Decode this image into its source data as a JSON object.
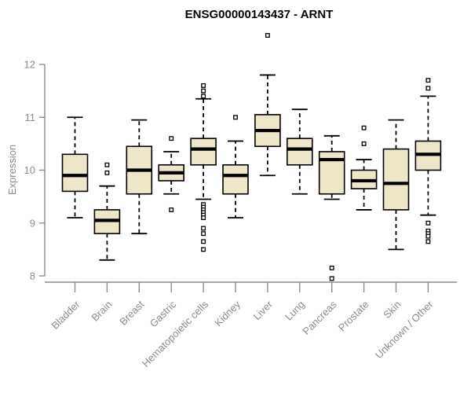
{
  "window": {
    "background": "#ffffff"
  },
  "colors": {
    "box_fill": "#ede6c8",
    "box_stroke": "#000000",
    "median_stroke": "#000000",
    "whisker_stroke": "#000000",
    "outlier_stroke": "#000000",
    "outlier_fill": "#ffffff",
    "axis_line": "#8c8c8c",
    "axis_text": "#8c8c8c",
    "title_text": "#000000"
  },
  "chart_data": {
    "type": "boxplot",
    "title": "ENSG00000143437 - ARNT",
    "xlabel": "",
    "ylabel": "Expression",
    "ylim": [
      8,
      12
    ],
    "y_ticks": [
      8,
      9,
      10,
      11,
      12
    ],
    "grid": "off",
    "legend": "none",
    "x_label_rotation_deg": -45,
    "categories": [
      "Bladder",
      "Brain",
      "Breast",
      "Gastric",
      "Hematopoietic cells",
      "Kidney",
      "Liver",
      "Lung",
      "Pancreas",
      "Prostate",
      "Skin",
      "Unknown / Other"
    ],
    "series": [
      {
        "label": "Bladder",
        "whisker_low": 9.1,
        "q1": 9.6,
        "median": 9.9,
        "q3": 10.3,
        "whisker_high": 11.0,
        "outliers": []
      },
      {
        "label": "Brain",
        "whisker_low": 8.3,
        "q1": 8.8,
        "median": 9.05,
        "q3": 9.25,
        "whisker_high": 9.7,
        "outliers": [
          10.1,
          9.95
        ]
      },
      {
        "label": "Breast",
        "whisker_low": 8.8,
        "q1": 9.55,
        "median": 10.0,
        "q3": 10.45,
        "whisker_high": 10.95,
        "outliers": []
      },
      {
        "label": "Gastric",
        "whisker_low": 9.55,
        "q1": 9.8,
        "median": 9.95,
        "q3": 10.1,
        "whisker_high": 10.35,
        "outliers": [
          10.6,
          9.25
        ]
      },
      {
        "label": "Hematopoietic cells",
        "whisker_low": 9.45,
        "q1": 10.1,
        "median": 10.4,
        "q3": 10.6,
        "whisker_high": 11.35,
        "outliers": [
          11.6,
          11.5,
          11.4,
          9.35,
          9.3,
          9.25,
          9.2,
          9.15,
          9.1,
          8.9,
          8.8,
          8.65,
          8.5
        ]
      },
      {
        "label": "Kidney",
        "whisker_low": 9.1,
        "q1": 9.55,
        "median": 9.9,
        "q3": 10.1,
        "whisker_high": 10.55,
        "outliers": [
          11.0
        ]
      },
      {
        "label": "Liver",
        "whisker_low": 9.9,
        "q1": 10.45,
        "median": 10.75,
        "q3": 11.05,
        "whisker_high": 11.8,
        "outliers": [
          12.55
        ]
      },
      {
        "label": "Lung",
        "whisker_low": 9.55,
        "q1": 10.1,
        "median": 10.4,
        "q3": 10.6,
        "whisker_high": 11.15,
        "outliers": []
      },
      {
        "label": "Pancreas",
        "whisker_low": 9.45,
        "q1": 9.55,
        "median": 10.2,
        "q3": 10.35,
        "whisker_high": 10.65,
        "outliers": [
          8.15,
          7.95
        ]
      },
      {
        "label": "Prostate",
        "whisker_low": 9.25,
        "q1": 9.65,
        "median": 9.8,
        "q3": 10.0,
        "whisker_high": 10.2,
        "outliers": [
          10.8,
          10.5
        ]
      },
      {
        "label": "Skin",
        "whisker_low": 8.5,
        "q1": 9.25,
        "median": 9.75,
        "q3": 10.4,
        "whisker_high": 10.95,
        "outliers": []
      },
      {
        "label": "Unknown / Other",
        "whisker_low": 9.15,
        "q1": 10.0,
        "median": 10.3,
        "q3": 10.55,
        "whisker_high": 11.4,
        "outliers": [
          11.7,
          11.55,
          9.0,
          8.85,
          8.8,
          8.75,
          8.65
        ]
      }
    ]
  }
}
